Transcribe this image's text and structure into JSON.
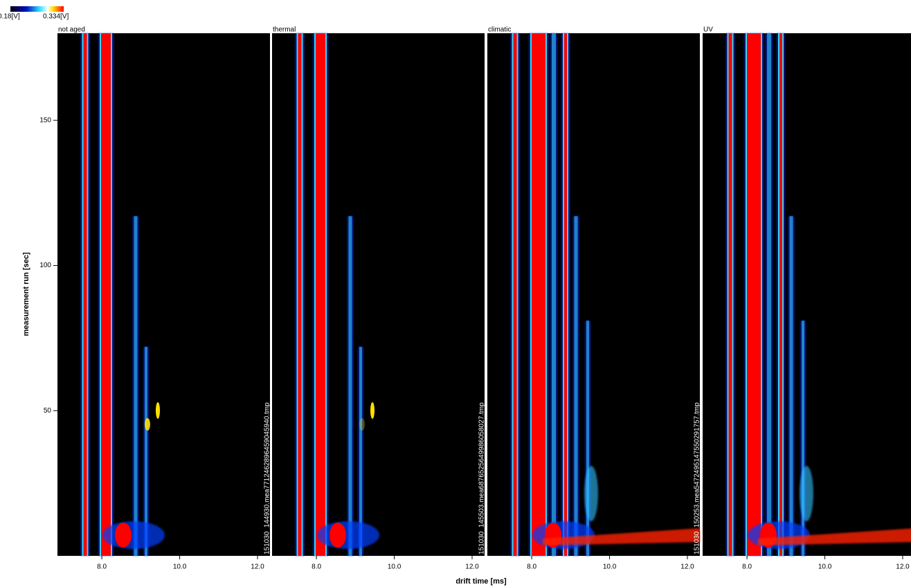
{
  "chart_data": {
    "type": "heatmap",
    "colorbar": {
      "min_label": "0.18[V]",
      "max_label": "0.334[V]"
    },
    "panels": [
      {
        "title": "not aged",
        "file": "151030_144930.mea7712462896459045940.tmp"
      },
      {
        "title": "thermal",
        "file": "151030_145503.mea6876525649986058027.tmp"
      },
      {
        "title": "climatic",
        "file": "151030_150253.mea5472495147550291757.tmp"
      },
      {
        "title": "UV"
      }
    ],
    "xlabel": "drift time [ms]",
    "ylabel": "measurement run [sec]",
    "xlim": [
      6.86,
      12.32
    ],
    "ylim": [
      0,
      180
    ],
    "xticks": [
      {
        "value": 8,
        "label": "8.0"
      },
      {
        "value": 10,
        "label": "10.0"
      },
      {
        "value": 12,
        "label": "12.0"
      }
    ],
    "yticks": [
      50,
      100,
      150
    ]
  }
}
